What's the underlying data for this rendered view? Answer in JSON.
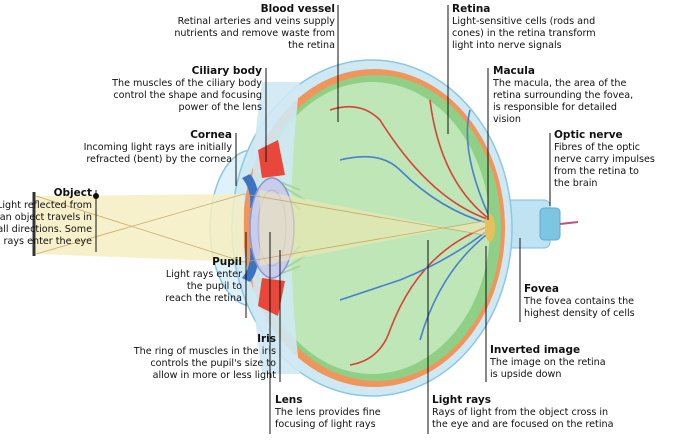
{
  "labels": [
    {
      "title": "Blood vessel",
      "lines": [
        "Retinal arteries and veins supply",
        "nutrients and remove waste from",
        "the retina"
      ]
    },
    {
      "title": "Retina",
      "lines": [
        "Light-sensitive cells (rods and",
        "cones) in the retina transform",
        "light into nerve signals"
      ]
    },
    {
      "title": "Ciliary body",
      "lines": [
        "The muscles of the ciliary body",
        "control the shape and focusing",
        "power of the lens"
      ]
    },
    {
      "title": "Macula",
      "lines": [
        "The macula, the area of the",
        "retina surrounding the fovea,",
        "is responsible for detailed",
        "vision"
      ]
    },
    {
      "title": "Cornea",
      "lines": [
        "Incoming light rays are initially",
        "refracted (bent) by the cornea"
      ]
    },
    {
      "title": "Optic nerve",
      "lines": [
        "Fibres of the optic",
        "nerve carry impulses",
        "from the retina to",
        "the brain"
      ]
    },
    {
      "title": "Object",
      "lines": [
        "Light reflected from",
        "an object travels in",
        "all directions. Some",
        "rays enter the eye"
      ]
    },
    {
      "title": "Pupil",
      "lines": [
        "Light rays enter",
        "the pupil to",
        "reach the retina"
      ]
    },
    {
      "title": "Fovea",
      "lines": [
        "The fovea contains the",
        "highest density of cells"
      ]
    },
    {
      "title": "Iris",
      "lines": [
        "The ring of muscles in the iris",
        "controls the pupil's size to",
        "allow in more or less light"
      ]
    },
    {
      "title": "Inverted image",
      "lines": [
        "The image on the retina",
        "is upside down"
      ]
    },
    {
      "title": "Lens",
      "lines": [
        "The lens provides fine",
        "focusing of light rays"
      ]
    },
    {
      "title": "Light rays",
      "lines": [
        "Rays of light from the object cross in",
        "the eye and are focused on the retina"
      ]
    }
  ]
}
